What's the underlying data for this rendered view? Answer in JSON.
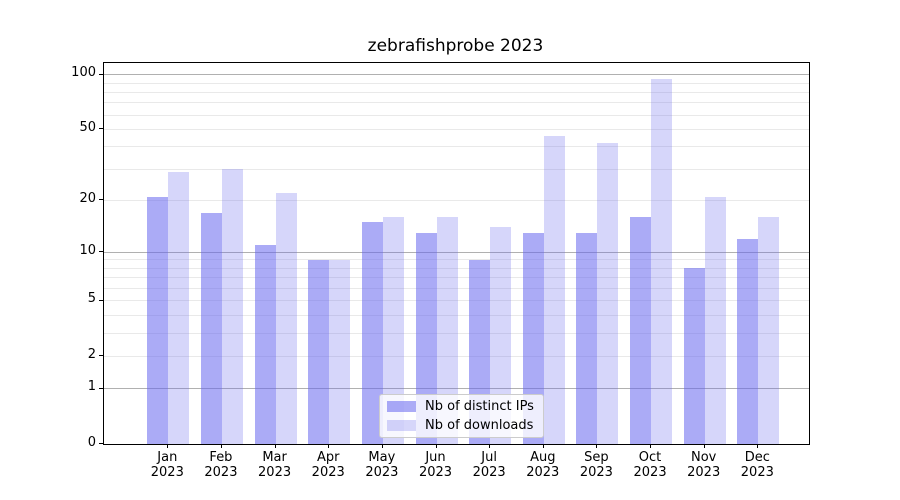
{
  "chart_data": {
    "type": "bar",
    "title": "zebrafishprobe 2023",
    "categories": [
      "Jan",
      "Feb",
      "Mar",
      "Apr",
      "May",
      "Jun",
      "Jul",
      "Aug",
      "Sep",
      "Oct",
      "Nov",
      "Dec"
    ],
    "year_label": "2023",
    "series": [
      {
        "name": "Nb of distinct IPs",
        "color": "rgba(102,102,238,0.55)",
        "values": [
          21,
          17,
          11,
          9,
          15,
          13,
          9,
          13,
          13,
          16,
          8,
          12
        ]
      },
      {
        "name": "Nb of downloads",
        "color": "rgba(102,102,238,0.27)",
        "values": [
          29,
          30,
          22,
          9,
          16,
          16,
          14,
          46,
          42,
          95,
          21,
          16
        ]
      }
    ],
    "y_scale": "log1p",
    "ylim": [
      0,
      116
    ],
    "y_ticks": [
      0,
      1,
      2,
      5,
      10,
      20,
      50,
      100
    ],
    "gridlines": {
      "major": [
        1,
        10,
        100
      ],
      "minor": [
        2,
        3,
        4,
        5,
        6,
        7,
        8,
        9,
        20,
        30,
        40,
        50,
        60,
        70,
        80,
        90
      ]
    },
    "legend_position": "lower center",
    "colors": {
      "bar_base": "#6666ee",
      "grid_major": "#b0b0b0",
      "grid_minor": "#e9e9e9",
      "spine": "#000000",
      "background": "#ffffff"
    }
  }
}
